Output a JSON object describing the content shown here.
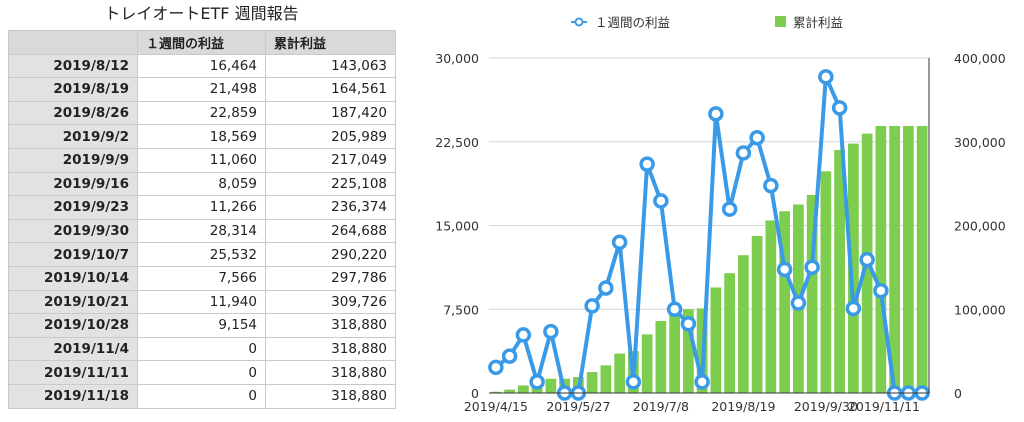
{
  "table": {
    "title": "トレイオートETF 週間報告",
    "headers": [
      "",
      "１週間の利益",
      "累計利益"
    ],
    "rows": [
      [
        "2019/8/12",
        "16,464",
        "143,063"
      ],
      [
        "2019/8/19",
        "21,498",
        "164,561"
      ],
      [
        "2019/8/26",
        "22,859",
        "187,420"
      ],
      [
        "2019/9/2",
        "18,569",
        "205,989"
      ],
      [
        "2019/9/9",
        "11,060",
        "217,049"
      ],
      [
        "2019/9/16",
        "8,059",
        "225,108"
      ],
      [
        "2019/9/23",
        "11,266",
        "236,374"
      ],
      [
        "2019/9/30",
        "28,314",
        "264,688"
      ],
      [
        "2019/10/7",
        "25,532",
        "290,220"
      ],
      [
        "2019/10/14",
        "7,566",
        "297,786"
      ],
      [
        "2019/10/21",
        "11,940",
        "309,726"
      ],
      [
        "2019/10/28",
        "9,154",
        "318,880"
      ],
      [
        "2019/11/4",
        "0",
        "318,880"
      ],
      [
        "2019/11/11",
        "0",
        "318,880"
      ],
      [
        "2019/11/18",
        "0",
        "318,880"
      ]
    ]
  },
  "chart_data": {
    "type": "bar+line",
    "legend": {
      "placement": "top",
      "line_label": "１週間の利益",
      "bar_label": "累計利益"
    },
    "colors": {
      "line": "#3a9ae8",
      "bar": "#7dcd4f"
    },
    "x_tick_labels": [
      "2019/4/15",
      "2019/5/27",
      "2019/7/8",
      "2019/8/19",
      "2019/9/30",
      "2019/11/11"
    ],
    "categories": [
      "2019/4/15",
      "2019/4/22",
      "2019/4/29",
      "2019/5/6",
      "2019/5/13",
      "2019/5/20",
      "2019/5/27",
      "2019/6/3",
      "2019/6/10",
      "2019/6/17",
      "2019/6/24",
      "2019/7/1",
      "2019/7/8",
      "2019/7/15",
      "2019/7/22",
      "2019/7/29",
      "2019/8/5",
      "2019/8/12",
      "2019/8/19",
      "2019/8/26",
      "2019/9/2",
      "2019/9/9",
      "2019/9/16",
      "2019/9/23",
      "2019/9/30",
      "2019/10/7",
      "2019/10/14",
      "2019/10/21",
      "2019/10/28",
      "2019/11/4",
      "2019/11/11",
      "2019/11/18"
    ],
    "series": [
      {
        "name": "１週間の利益",
        "axis": "left",
        "type": "line",
        "values": [
          2300,
          3300,
          5200,
          1000,
          5500,
          0,
          0,
          7800,
          9400,
          13500,
          1000,
          20500,
          17200,
          7500,
          6200,
          1000,
          25000,
          16464,
          21498,
          22859,
          18569,
          11060,
          8059,
          11266,
          28314,
          25532,
          7566,
          11940,
          9154,
          0,
          0,
          0
        ]
      },
      {
        "name": "累計利益",
        "axis": "right",
        "type": "bar",
        "values": [
          1500,
          4000,
          9000,
          14000,
          17000,
          17000,
          19000,
          25000,
          33000,
          47000,
          50000,
          70000,
          86000,
          93000,
          100000,
          101000,
          126000,
          143063,
          164561,
          187420,
          205989,
          217049,
          225108,
          236374,
          264688,
          290220,
          297786,
          309726,
          318880,
          318880,
          318880,
          318880
        ]
      }
    ],
    "left_axis": {
      "ylim": [
        0,
        30000
      ],
      "ticks": [
        "30,000",
        "22,500",
        "15,000",
        "7,500",
        "0"
      ]
    },
    "right_axis": {
      "ylim": [
        0,
        400000
      ],
      "ticks": [
        "400,000",
        "300,000",
        "200,000",
        "100,000",
        "0"
      ]
    }
  }
}
